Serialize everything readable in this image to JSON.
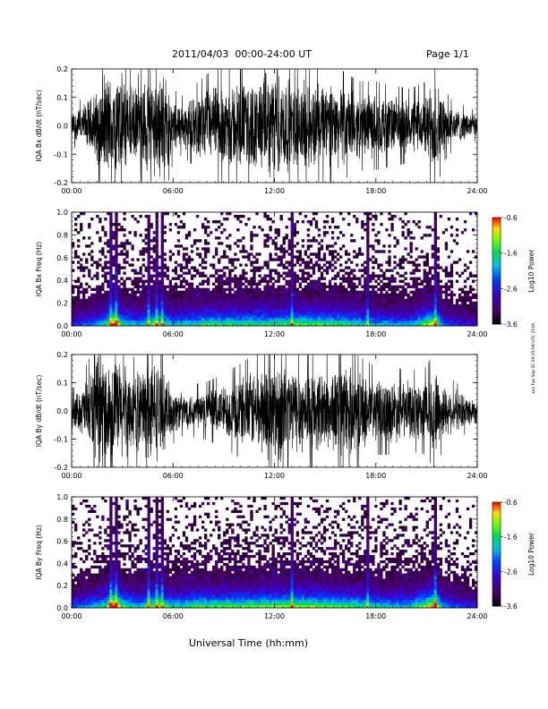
{
  "header": {
    "title": "2011/04/03  00:00-24:00 UT",
    "page": "Page 1/1"
  },
  "xlabel": "Universal Time (hh:mm)",
  "side_note": "xxx Tue Sep 20 09:25:06 UTC 2016",
  "chart_data": [
    {
      "type": "line",
      "title": "",
      "ylabel": "IQA Bx dB/dt (nT/sec)",
      "xlabel": "",
      "x_ticks": [
        "00:00",
        "06:00",
        "12:00",
        "18:00",
        "24:00"
      ],
      "xlim": [
        "00:00",
        "24:00"
      ],
      "ylim": [
        -0.2,
        0.2
      ],
      "y_ticks": [
        "-0.2",
        "-0.1",
        "0.0",
        "0.1",
        "0.2"
      ],
      "envelope": {
        "hour": [
          0,
          0.5,
          1,
          1.5,
          2,
          2.3,
          2.7,
          3,
          3.5,
          4,
          4.5,
          5,
          5.5,
          6,
          6.5,
          7,
          8,
          9,
          10,
          11,
          11.5,
          12,
          12.5,
          13,
          14,
          15,
          16,
          17,
          17.5,
          18,
          19,
          20,
          21,
          21.5,
          22,
          22.5,
          23,
          23.5,
          24
        ],
        "amplitude": [
          0.05,
          0.07,
          0.1,
          0.14,
          0.2,
          0.2,
          0.2,
          0.2,
          0.15,
          0.14,
          0.2,
          0.2,
          0.2,
          0.1,
          0.08,
          0.1,
          0.14,
          0.16,
          0.17,
          0.17,
          0.2,
          0.2,
          0.2,
          0.16,
          0.17,
          0.16,
          0.15,
          0.12,
          0.12,
          0.12,
          0.11,
          0.1,
          0.12,
          0.2,
          0.1,
          0.07,
          0.06,
          0.05,
          0.04
        ]
      }
    },
    {
      "type": "heatmap",
      "title": "",
      "ylabel": "IQA Bx Freq (Hz)",
      "xlabel": "",
      "x_ticks": [
        "00:00",
        "06:00",
        "12:00",
        "18:00",
        "24:00"
      ],
      "xlim": [
        "00:00",
        "24:00"
      ],
      "ylim": [
        0.0,
        1.0
      ],
      "y_ticks": [
        "0.0",
        "0.2",
        "0.4",
        "0.6",
        "0.8",
        "1.0"
      ],
      "colorbar": {
        "label": "Log10 Power",
        "ticks": [
          "-0.6",
          "-1.6",
          "-2.6",
          "-3.6"
        ],
        "range": [
          -3.6,
          -0.6
        ]
      },
      "activity": {
        "hour": [
          0,
          1,
          2,
          2.5,
          3,
          4,
          4.5,
          5,
          6,
          7,
          8,
          10,
          12,
          14,
          16,
          18,
          20,
          21.5,
          22,
          23,
          24
        ],
        "level": [
          0.3,
          0.4,
          0.55,
          0.9,
          0.6,
          0.45,
          0.6,
          0.7,
          0.5,
          0.55,
          0.6,
          0.6,
          0.6,
          0.65,
          0.6,
          0.5,
          0.45,
          0.8,
          0.4,
          0.3,
          0.25
        ]
      },
      "bright_streaks_hour": [
        2.3,
        2.6,
        4.5,
        5.0,
        5.3,
        12.9,
        17.5,
        21.5
      ]
    },
    {
      "type": "line",
      "title": "",
      "ylabel": "IQA By dB/dt (nT/sec)",
      "xlabel": "",
      "x_ticks": [
        "00:00",
        "06:00",
        "12:00",
        "18:00",
        "24:00"
      ],
      "xlim": [
        "00:00",
        "24:00"
      ],
      "ylim": [
        -0.2,
        0.2
      ],
      "y_ticks": [
        "-0.2",
        "-0.1",
        "0.0",
        "0.1",
        "0.2"
      ],
      "envelope": {
        "hour": [
          0,
          0.5,
          1,
          1.5,
          2,
          2.5,
          3,
          3.5,
          4,
          4.5,
          5,
          5.5,
          6,
          6.5,
          7,
          8,
          9,
          10,
          11,
          12,
          12.5,
          13,
          14,
          15,
          16,
          17,
          18,
          19,
          20,
          21,
          21.5,
          22,
          23,
          24
        ],
        "amplitude": [
          0.06,
          0.08,
          0.14,
          0.2,
          0.2,
          0.2,
          0.2,
          0.14,
          0.16,
          0.2,
          0.2,
          0.14,
          0.09,
          0.07,
          0.07,
          0.08,
          0.1,
          0.13,
          0.16,
          0.2,
          0.2,
          0.17,
          0.16,
          0.15,
          0.18,
          0.15,
          0.12,
          0.12,
          0.11,
          0.12,
          0.17,
          0.1,
          0.07,
          0.05
        ]
      }
    },
    {
      "type": "heatmap",
      "title": "",
      "ylabel": "IQA By Freq (Hz)",
      "xlabel": "Universal Time (hh:mm)",
      "x_ticks": [
        "00:00",
        "06:00",
        "12:00",
        "18:00",
        "24:00"
      ],
      "xlim": [
        "00:00",
        "24:00"
      ],
      "ylim": [
        0.0,
        1.0
      ],
      "y_ticks": [
        "0.0",
        "0.2",
        "0.4",
        "0.6",
        "0.8",
        "1.0"
      ],
      "colorbar": {
        "label": "Log10 Power",
        "ticks": [
          "-0.6",
          "-1.6",
          "-2.6",
          "-3.6"
        ],
        "range": [
          -3.6,
          -0.6
        ]
      },
      "activity": {
        "hour": [
          0,
          1,
          2,
          2.5,
          3,
          4,
          4.5,
          5,
          6,
          7,
          8,
          10,
          12,
          14,
          16,
          18,
          20,
          21.5,
          22,
          23,
          24
        ],
        "level": [
          0.35,
          0.45,
          0.6,
          0.95,
          0.65,
          0.5,
          0.65,
          0.75,
          0.55,
          0.6,
          0.65,
          0.65,
          0.7,
          0.7,
          0.65,
          0.55,
          0.5,
          0.85,
          0.45,
          0.35,
          0.3
        ]
      },
      "bright_streaks_hour": [
        2.3,
        2.6,
        4.5,
        5.0,
        5.3,
        12.9,
        17.5,
        21.5
      ]
    }
  ]
}
